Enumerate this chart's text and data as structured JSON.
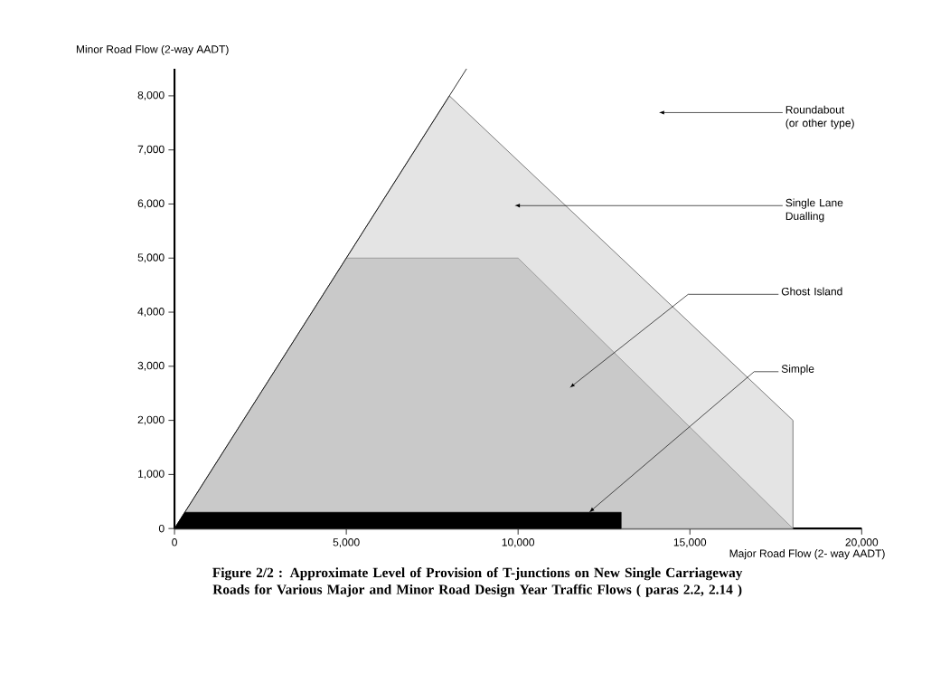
{
  "chart_data": {
    "type": "area",
    "title": "Figure 2/2 : Approximate Level of Provision of T-junctions on New Single Carriageway Roads for Various Major and Minor Road Design Year Traffic Flows ( paras 2.2, 2.14 )",
    "xlabel": "Major Road Flow (2- way AADT)",
    "ylabel": "Minor Road Flow (2-way AADT)",
    "series": [
      {
        "x": [
          0,
          8000,
          18000,
          18000
        ],
        "values": [
          0,
          8000,
          2000,
          0
        ],
        "color": "#e4e4e4"
      },
      {
        "x": [
          0,
          5000,
          10000,
          18000
        ],
        "values": [
          0,
          5000,
          5000,
          0
        ],
        "color": "#c9c9c9"
      },
      {
        "x": [
          0,
          300,
          13000,
          13000
        ],
        "values": [
          0,
          300,
          300,
          0
        ],
        "color": "#000000"
      },
      {
        "type": "line",
        "x": [
          0,
          8500
        ],
        "values": [
          0,
          8500
        ],
        "color": "#000000"
      }
    ],
    "xlim": [
      0,
      20000
    ],
    "ylim": [
      0,
      8500
    ],
    "xticks": [
      0,
      {
        "value": 5000,
        "label": "5,000"
      },
      {
        "value": 10000,
        "label": "10,000"
      },
      {
        "value": 15000,
        "label": "15,000"
      },
      {
        "value": 20000,
        "label": "20,000"
      }
    ],
    "yticks": [
      0,
      {
        "value": 1000,
        "label": "1,000"
      },
      {
        "value": 2000,
        "label": "2,000"
      },
      {
        "value": 3000,
        "label": "3,000"
      },
      {
        "value": 4000,
        "label": "4,000"
      },
      {
        "value": 5000,
        "label": "5,000"
      },
      {
        "value": 6000,
        "label": "6,000"
      },
      {
        "value": 7000,
        "label": "7,000"
      },
      {
        "value": 8000,
        "label": "8,000"
      }
    ],
    "annotations": [
      "Roundabout (or other type)",
      "Single Lane Dualling",
      "Ghost Island",
      {
        "text": "Simple",
        "x": 12070,
        "y": 300
      }
    ]
  }
}
